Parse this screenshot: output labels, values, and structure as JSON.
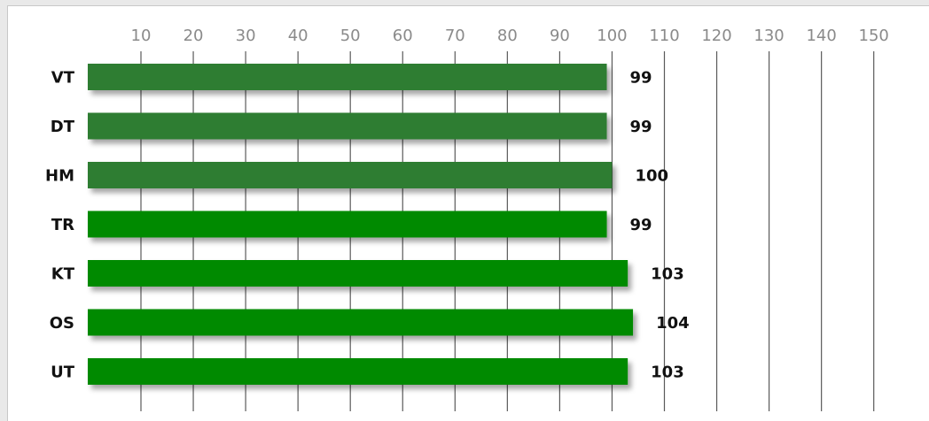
{
  "chart_data": {
    "type": "bar",
    "orientation": "horizontal",
    "categories": [
      "VT",
      "DT",
      "HM",
      "TR",
      "KT",
      "OS",
      "UT"
    ],
    "values": [
      99,
      99,
      100,
      99,
      103,
      104,
      103
    ],
    "value_labels": [
      "99",
      "99",
      "100",
      "99",
      "103",
      "104",
      "103"
    ],
    "bar_colors": [
      "#2e7d32",
      "#2e7d32",
      "#2e7d32",
      "#008a00",
      "#008a00",
      "#008a00",
      "#008a00"
    ],
    "x_ticks": [
      10,
      20,
      30,
      40,
      50,
      60,
      70,
      80,
      90,
      100,
      110,
      120,
      130,
      140,
      150
    ],
    "xlim": [
      0,
      150
    ],
    "tick_axis_position": "top",
    "grid": true
  }
}
